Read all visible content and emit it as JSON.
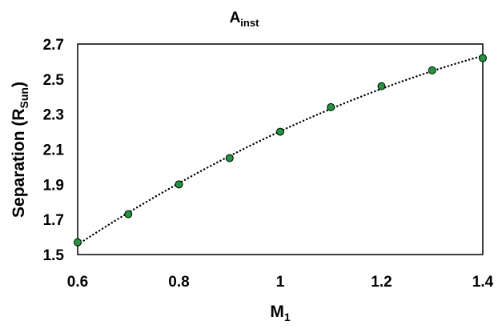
{
  "chart_data": {
    "type": "scatter",
    "title": {
      "main": "A",
      "sub": "inst"
    },
    "xlabel": {
      "main": "M",
      "sub": "1"
    },
    "ylabel": {
      "main": "Separation (R",
      "sub": "Sun",
      "end": ")"
    },
    "xlim": [
      0.6,
      1.4
    ],
    "ylim": [
      1.5,
      2.7
    ],
    "x_ticks": [
      0.6,
      0.8,
      1.0,
      1.2,
      1.4
    ],
    "x_tick_labels": [
      "0.6",
      "0.8",
      "1",
      "1.2",
      "1.4"
    ],
    "y_ticks": [
      1.5,
      1.7,
      1.9,
      2.1,
      2.3,
      2.5,
      2.7
    ],
    "y_tick_labels": [
      "1.5",
      "1.7",
      "1.9",
      "2.1",
      "2.3",
      "2.5",
      "2.7"
    ],
    "grid": false,
    "legend": "none",
    "series": [
      {
        "x": [
          0.6,
          0.7,
          0.8,
          0.9,
          1.0,
          1.1,
          1.2,
          1.3,
          1.4
        ],
        "y": [
          1.57,
          1.73,
          1.9,
          2.05,
          2.2,
          2.34,
          2.46,
          2.55,
          2.62
        ],
        "marker_color": "#1a9a3a"
      }
    ],
    "trendline": {
      "style": "dotted",
      "color": "#000000"
    }
  }
}
